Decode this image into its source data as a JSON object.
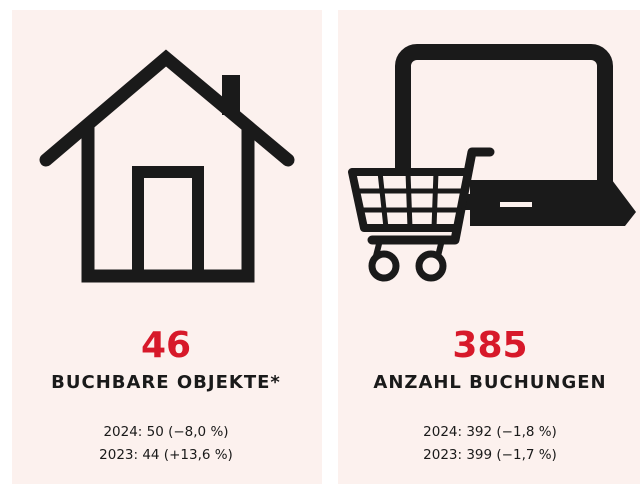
{
  "cards": [
    {
      "value": "46",
      "label": "BUCHBARE OBJEKTE*",
      "lines": [
        "2024: 50 (−8,0 %)",
        "2023: 44 (+13,6 %)"
      ]
    },
    {
      "value": "385",
      "label": "ANZAHL BUCHUNGEN",
      "lines": [
        "2024: 392  (−1,8 %)",
        "2023: 399  (−1,7 %)"
      ]
    }
  ]
}
